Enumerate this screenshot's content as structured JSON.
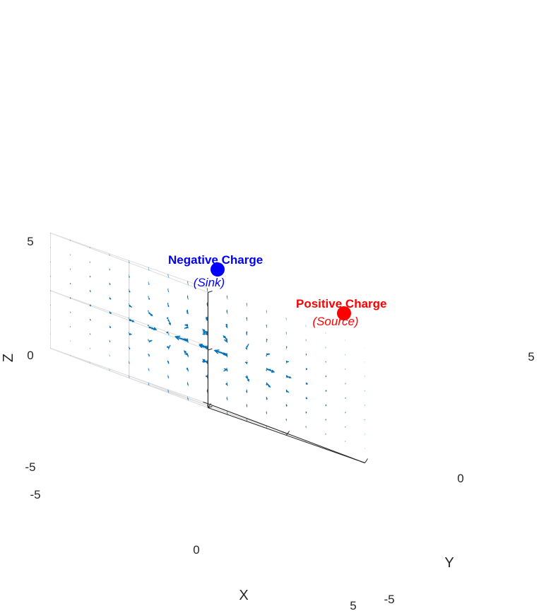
{
  "chart_data": {
    "type": "quiver3d",
    "title": "",
    "xlabel": "X",
    "ylabel": "Y",
    "zlabel": "Z",
    "xlim": [
      -5,
      5
    ],
    "ylim": [
      -5,
      5
    ],
    "zlim": [
      -5,
      5
    ],
    "xticks": [
      "-5",
      "0",
      "5"
    ],
    "yticks": [
      "-5",
      "0",
      "5"
    ],
    "zticks": [
      "-5",
      "0",
      "5"
    ],
    "grid": true,
    "arrow_color": "#0072BD",
    "charges": [
      {
        "name": "Positive Charge",
        "role": "(Source)",
        "color": "#ff0000",
        "q": 1,
        "position": [
          2,
          0,
          0
        ]
      },
      {
        "name": "Negative Charge",
        "role": "(Sink)",
        "color": "#0000ff",
        "q": -1,
        "position": [
          -2,
          0,
          0
        ]
      }
    ]
  }
}
